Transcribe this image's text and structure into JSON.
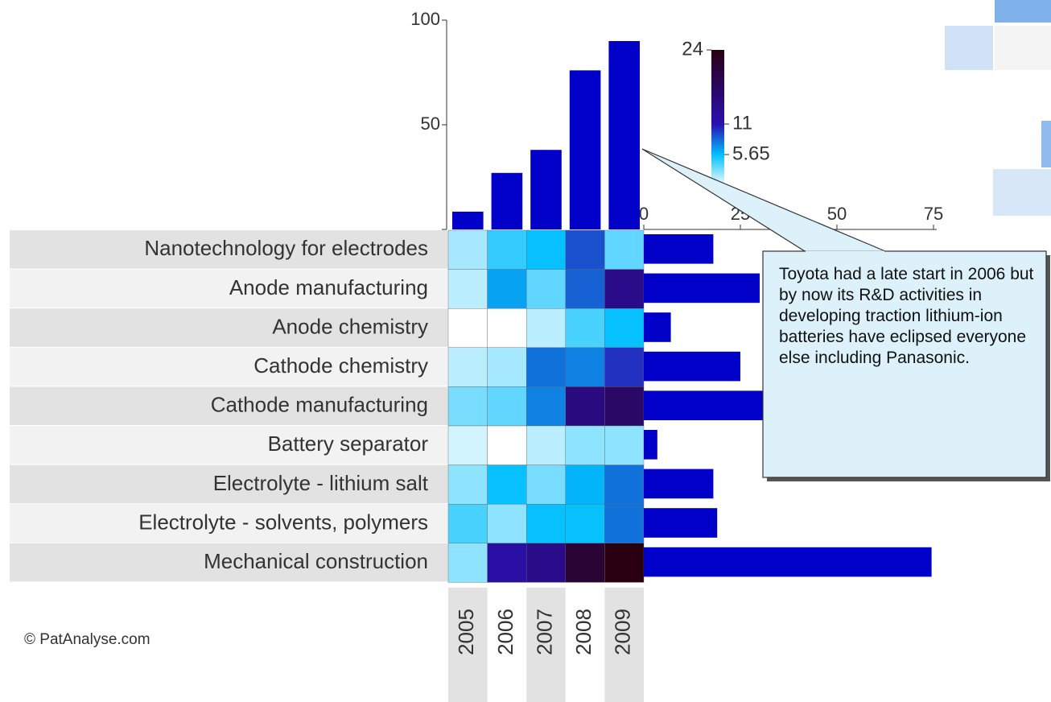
{
  "chart_data": {
    "type": "heatmap",
    "rows": [
      "Nanotechnology for electrodes",
      "Anode manufacturing",
      "Anode chemistry",
      "Cathode chemistry",
      "Cathode manufacturing",
      "Battery separator",
      "Electrolyte - lithium salt",
      "Electrolyte - solvents, polymers",
      "Mechanical construction"
    ],
    "columns": [
      "2005",
      "2006",
      "2007",
      "2008",
      "2009"
    ],
    "values": [
      [
        2,
        4.5,
        5.5,
        9,
        3.5
      ],
      [
        1.5,
        6.5,
        3.5,
        8.5,
        14
      ],
      [
        0,
        0,
        1.5,
        4,
        5.5
      ],
      [
        1.5,
        2,
        8,
        7.5,
        10
      ],
      [
        3,
        3.5,
        7.5,
        15,
        17
      ],
      [
        1,
        0,
        1.5,
        2.5,
        2.5
      ],
      [
        2.5,
        5.5,
        3,
        6,
        8
      ],
      [
        4,
        2.5,
        5.5,
        5.5,
        8
      ],
      [
        2.5,
        12,
        14,
        21,
        24
      ]
    ],
    "colorbar": {
      "clim": [
        0,
        24
      ],
      "ticks": [
        5.65,
        11,
        24
      ],
      "colors": [
        "#ffffff",
        "#00bfff",
        "#2a10b0",
        "#2a0010"
      ]
    },
    "top_bars": {
      "type": "bar",
      "values": [
        8.5,
        27,
        38,
        76,
        90
      ],
      "color": "#0000c8",
      "ylim": [
        0,
        100
      ],
      "yticks": [
        0,
        50,
        100
      ]
    },
    "side_bars": {
      "type": "bar",
      "values": [
        18,
        30,
        7,
        25,
        35,
        3.5,
        18,
        19,
        74.5
      ],
      "color": "#0000c8",
      "xlim": [
        0,
        75
      ],
      "xticks": [
        0,
        25,
        50,
        75
      ]
    },
    "annotation": "Toyota had a late start in 2006 but by now its R&D activities in developing traction lithium-ion batteries have eclipsed everyone else including Panasonic.",
    "source": "© PatAnalyse.com"
  }
}
